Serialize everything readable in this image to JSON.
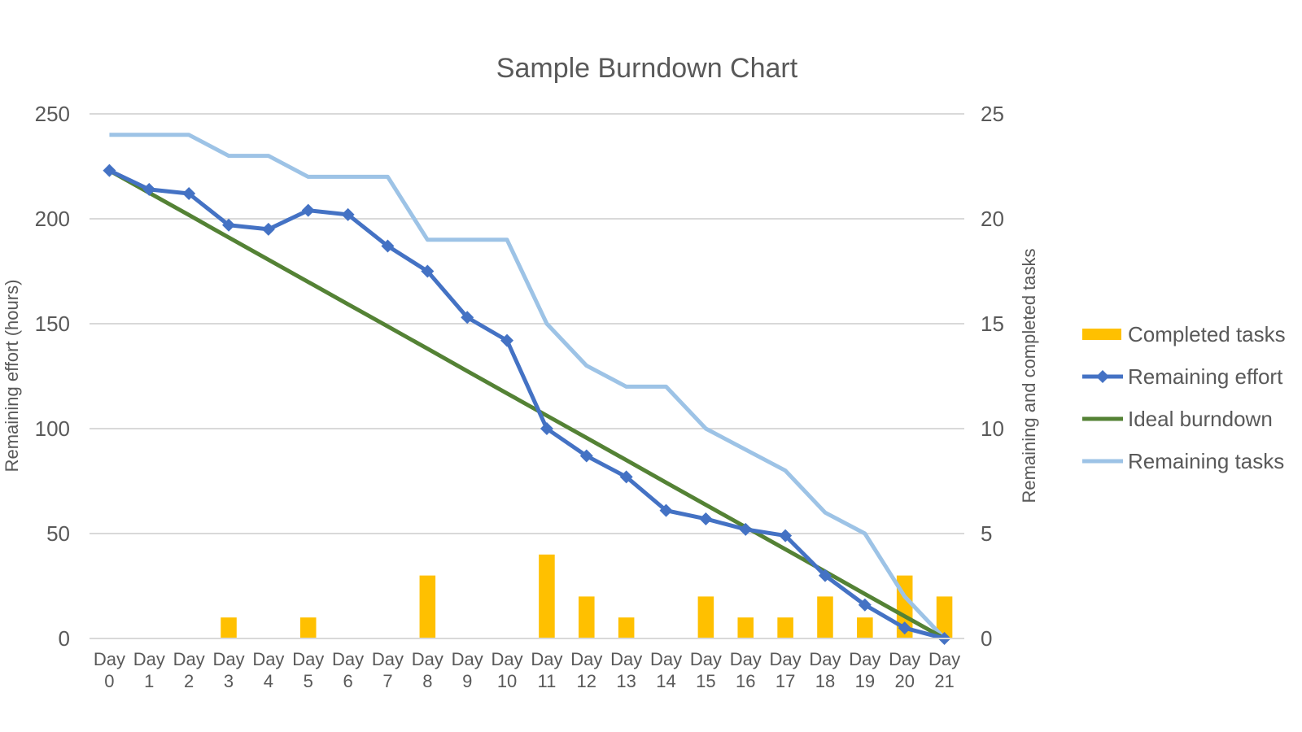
{
  "chart_data": {
    "type": "combo",
    "title": "Sample Burndown Chart",
    "categories": [
      [
        "Day",
        "0"
      ],
      [
        "Day",
        "1"
      ],
      [
        "Day",
        "2"
      ],
      [
        "Day",
        "3"
      ],
      [
        "Day",
        "4"
      ],
      [
        "Day",
        "5"
      ],
      [
        "Day",
        "6"
      ],
      [
        "Day",
        "7"
      ],
      [
        "Day",
        "8"
      ],
      [
        "Day",
        "9"
      ],
      [
        "Day",
        "10"
      ],
      [
        "Day",
        "11"
      ],
      [
        "Day",
        "12"
      ],
      [
        "Day",
        "13"
      ],
      [
        "Day",
        "14"
      ],
      [
        "Day",
        "15"
      ],
      [
        "Day",
        "16"
      ],
      [
        "Day",
        "17"
      ],
      [
        "Day",
        "18"
      ],
      [
        "Day",
        "19"
      ],
      [
        "Day",
        "20"
      ],
      [
        "Day",
        "21"
      ]
    ],
    "y_left": {
      "label": "Remaining effort (hours)",
      "range": [
        0,
        250
      ],
      "ticks": [
        "0",
        "50",
        "100",
        "150",
        "200",
        "250"
      ]
    },
    "y_right": {
      "label": "Remaining and completed tasks",
      "range": [
        0,
        25
      ],
      "ticks": [
        "0",
        "5",
        "10",
        "15",
        "20",
        "25"
      ]
    },
    "grid": true,
    "legend_position": "right",
    "series": [
      {
        "name": "Completed tasks",
        "type": "bar",
        "axis": "right",
        "color": "#FFC000",
        "values": [
          0,
          0,
          0,
          1,
          0,
          1,
          0,
          0,
          3,
          0,
          0,
          4,
          2,
          1,
          0,
          2,
          1,
          1,
          2,
          1,
          3,
          2
        ]
      },
      {
        "name": "Remaining effort",
        "type": "line",
        "marker": "diamond",
        "axis": "left",
        "color": "#4472C4",
        "values": [
          223,
          214,
          212,
          197,
          195,
          204,
          202,
          187,
          175,
          153,
          142,
          100,
          87,
          77,
          61,
          57,
          52,
          49,
          30,
          16,
          5,
          0
        ]
      },
      {
        "name": "Ideal burndown",
        "type": "line",
        "axis": "left",
        "color": "#548235",
        "values": [
          223,
          212.4,
          201.8,
          191.1,
          180.5,
          169.9,
          159.3,
          148.7,
          138.1,
          127.4,
          116.8,
          106.2,
          95.6,
          85,
          74.3,
          63.7,
          53.1,
          42.5,
          31.9,
          21.2,
          10.6,
          0
        ]
      },
      {
        "name": "Remaining tasks",
        "type": "line",
        "axis": "right",
        "color": "#9DC3E6",
        "values": [
          24,
          24,
          24,
          23,
          23,
          22,
          22,
          22,
          19,
          19,
          19,
          15,
          13,
          12,
          12,
          10,
          9,
          8,
          6,
          5,
          2,
          0
        ]
      }
    ]
  }
}
